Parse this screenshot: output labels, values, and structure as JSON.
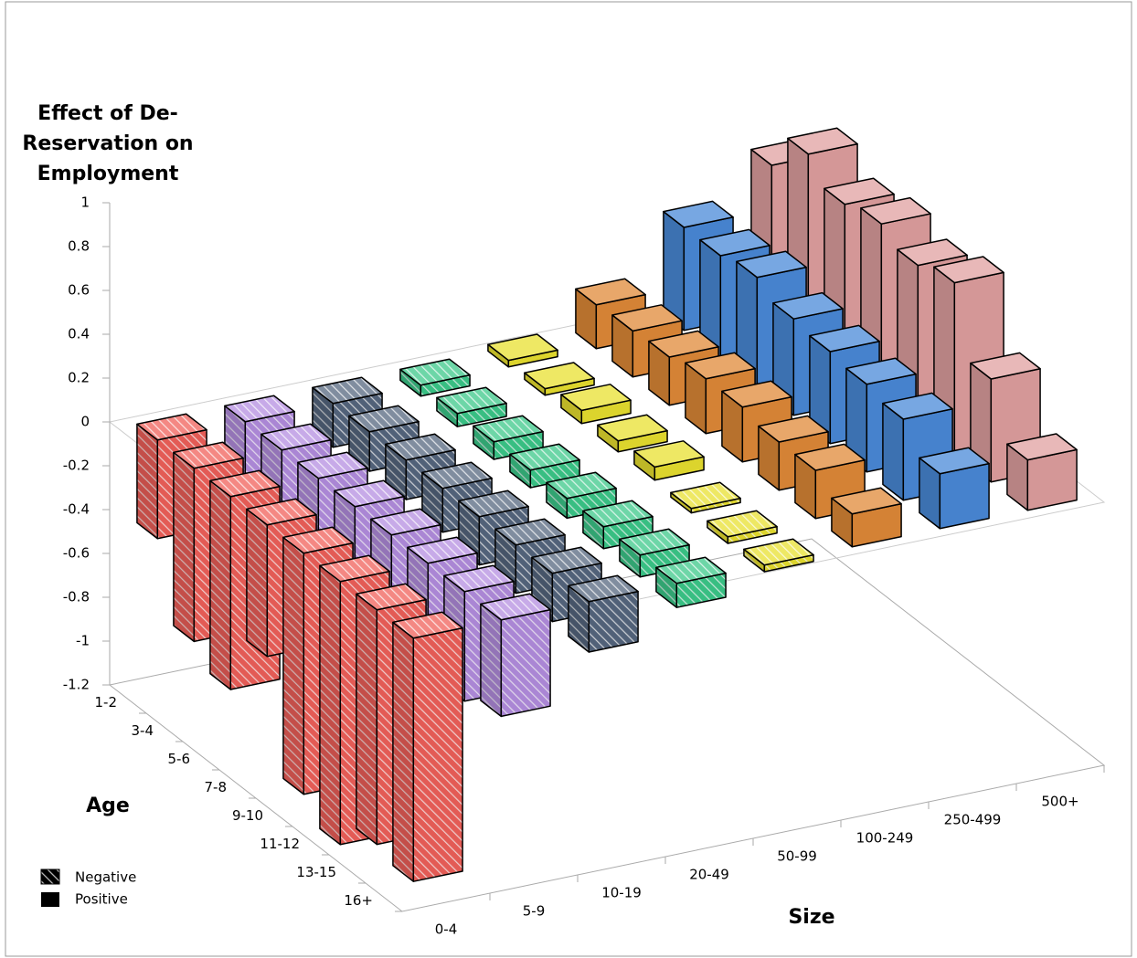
{
  "chart_data": {
    "type": "bar3d",
    "z_label": "Effect of De-Reservation on Employment",
    "x_label": "Size",
    "y_label": "Age",
    "sizes": [
      "0-4",
      "5-9",
      "10-19",
      "20-49",
      "50-99",
      "100-249",
      "250-499",
      "500+"
    ],
    "ages": [
      "1-2",
      "3-4",
      "5-6",
      "7-8",
      "9-10",
      "11-12",
      "13-15",
      "16+"
    ],
    "series": [
      {
        "color": "#f0605a",
        "values": [
          -0.45,
          -0.79,
          -0.88,
          -0.6,
          -1.1,
          -1.2,
          -1.07,
          -1.11
        ]
      },
      {
        "color": "#b48ee0",
        "values": [
          -0.55,
          -0.5,
          -0.5,
          -0.5,
          -0.5,
          -0.5,
          -0.5,
          -0.44
        ]
      },
      {
        "color": "#56677f",
        "values": [
          -0.2,
          -0.18,
          -0.18,
          -0.2,
          -0.22,
          -0.22,
          -0.22,
          -0.23
        ]
      },
      {
        "color": "#3cc98a",
        "values": [
          -0.05,
          -0.06,
          -0.08,
          -0.08,
          -0.09,
          -0.1,
          -0.1,
          -0.11
        ]
      },
      {
        "color": "#e8e030",
        "values": [
          0.03,
          0.03,
          0.06,
          0.05,
          0.06,
          -0.02,
          -0.03,
          -0.03
        ]
      },
      {
        "color": "#e08a38",
        "values": [
          0.2,
          0.21,
          0.22,
          0.25,
          0.25,
          0.22,
          0.22,
          0.15
        ]
      },
      {
        "color": "#4a8ad8",
        "values": [
          0.47,
          0.47,
          0.5,
          0.44,
          0.42,
          0.4,
          0.37,
          0.25
        ]
      },
      {
        "color": "#e0a0a0",
        "values": [
          0.67,
          0.85,
          0.75,
          0.79,
          0.73,
          0.78,
          0.47,
          0.23
        ]
      }
    ],
    "zlim": [
      -1.2,
      1
    ],
    "zticks": [
      -1.2,
      -1,
      -0.8,
      -0.6,
      -0.4,
      -0.2,
      0,
      0.2,
      0.4,
      0.6,
      0.8,
      1
    ],
    "legend": {
      "negative": "Negative",
      "positive": "Positive"
    }
  }
}
